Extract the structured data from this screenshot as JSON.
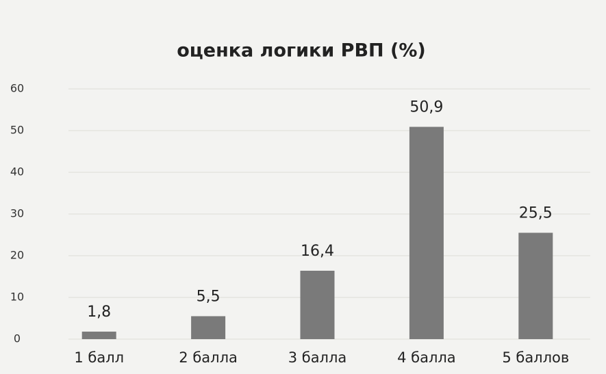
{
  "chart_data": {
    "type": "bar",
    "title": "оценка логики РВП (%)",
    "categories": [
      "1 балл",
      "2 балла",
      "3 балла",
      "4 балла",
      "5 баллов"
    ],
    "values": [
      1.8,
      5.5,
      16.4,
      50.9,
      25.5
    ],
    "value_labels": [
      "1,8",
      "5,5",
      "16,4",
      "50,9",
      "25,5"
    ],
    "color": "#7a7a7a",
    "ylim": [
      0,
      60
    ],
    "yticks": [
      0,
      10,
      20,
      30,
      40,
      50,
      60
    ],
    "grid": true
  }
}
